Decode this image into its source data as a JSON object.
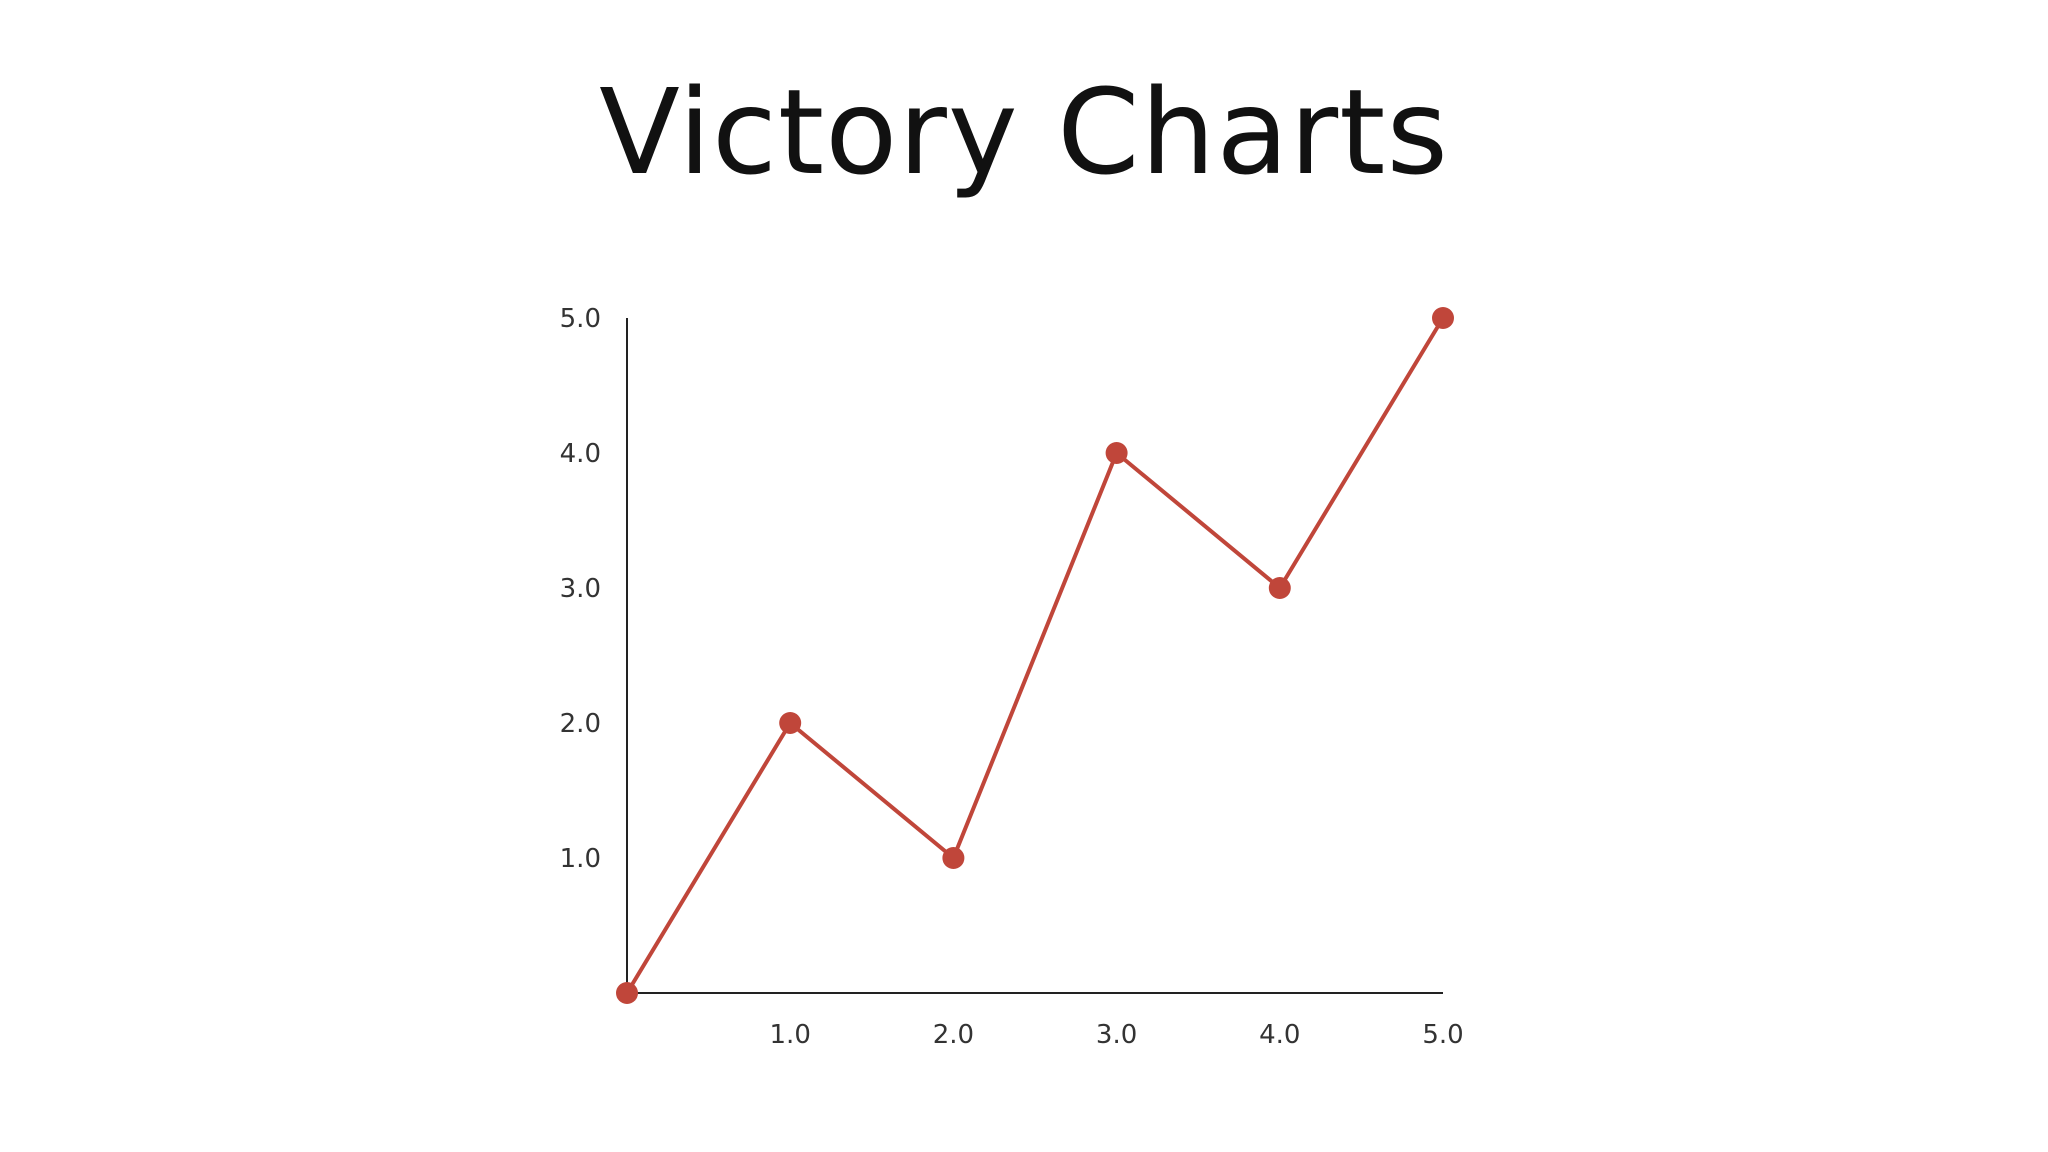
{
  "title": "Victory Charts",
  "chart_data": {
    "type": "line",
    "title": "Victory Charts",
    "xlabel": "",
    "ylabel": "",
    "x": [
      0,
      1,
      2,
      3,
      4,
      5
    ],
    "series": [
      {
        "values": [
          0,
          2,
          1,
          4,
          3,
          5
        ]
      }
    ],
    "xlim": [
      0,
      5
    ],
    "ylim": [
      0,
      5
    ],
    "x_ticks": [
      "1.0",
      "2.0",
      "3.0",
      "4.0",
      "5.0"
    ],
    "y_ticks": [
      "1.0",
      "2.0",
      "3.0",
      "4.0",
      "5.0"
    ],
    "grid": false,
    "legend": "none",
    "colors": {
      "line": "#c0463a",
      "marker": "#c0463a",
      "axis": "#222222"
    }
  }
}
